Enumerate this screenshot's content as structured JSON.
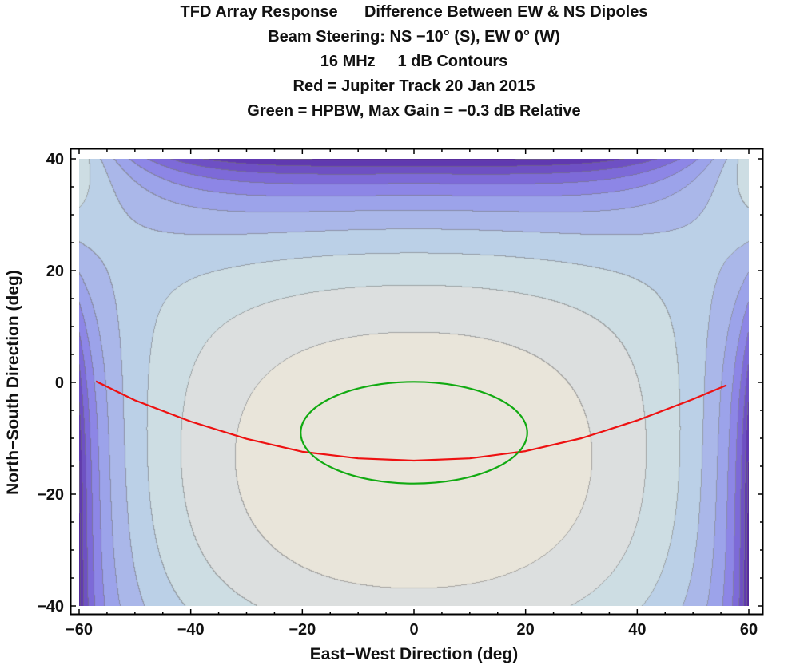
{
  "chart_data": {
    "type": "contour",
    "title_lines": [
      "TFD Array Response      Difference Between EW & NS Dipoles",
      "Beam Steering: NS −10° (S), EW 0° (W)",
      "16 MHz     1 dB Contours",
      "Red = Jupiter Track 20 Jan 2015",
      "Green = HPBW, Max Gain = −0.3 dB Relative"
    ],
    "xlabel": "East−West Direction (deg)",
    "ylabel": "North−South Direction (deg)",
    "xlim": [
      -60,
      60
    ],
    "ylim": [
      -40,
      40
    ],
    "xticks": [
      -60,
      -40,
      -20,
      0,
      20,
      40,
      60
    ],
    "xtick_labels": [
      "−60",
      "−40",
      "−20",
      "0",
      "20",
      "40",
      "60"
    ],
    "yticks": [
      -40,
      -20,
      0,
      20,
      40
    ],
    "ytick_labels": [
      "−40",
      "−20",
      "0",
      "20",
      "40"
    ],
    "minor_tick_step": 5,
    "contour_interval_db": 1,
    "band_colors": [
      "#e9e5da",
      "#dcdfdf",
      "#cddde3",
      "#bbd0e7",
      "#aab7e9",
      "#9ca3ea",
      "#8d86e6",
      "#7d6ad8",
      "#6e50c4",
      "#6039b0",
      "#55279f",
      "#4a1890",
      "#400c80"
    ],
    "contour_line_color": "#7a7a7a",
    "series": [
      {
        "name": "Jupiter Track 20 Jan 2015",
        "color": "#ee1111",
        "x": [
          -57,
          -50,
          -40,
          -30,
          -20,
          -10,
          0,
          10,
          20,
          30,
          40,
          50,
          56
        ],
        "y": [
          0.2,
          -3.2,
          -7.0,
          -10.1,
          -12.4,
          -13.6,
          -14.0,
          -13.6,
          -12.3,
          -10.0,
          -6.8,
          -3.0,
          -0.5
        ]
      },
      {
        "name": "HPBW",
        "color": "#11aa11",
        "shape": "ellipse",
        "center": [
          0,
          -9
        ],
        "semi_axes": [
          20.3,
          9.1
        ]
      }
    ]
  }
}
